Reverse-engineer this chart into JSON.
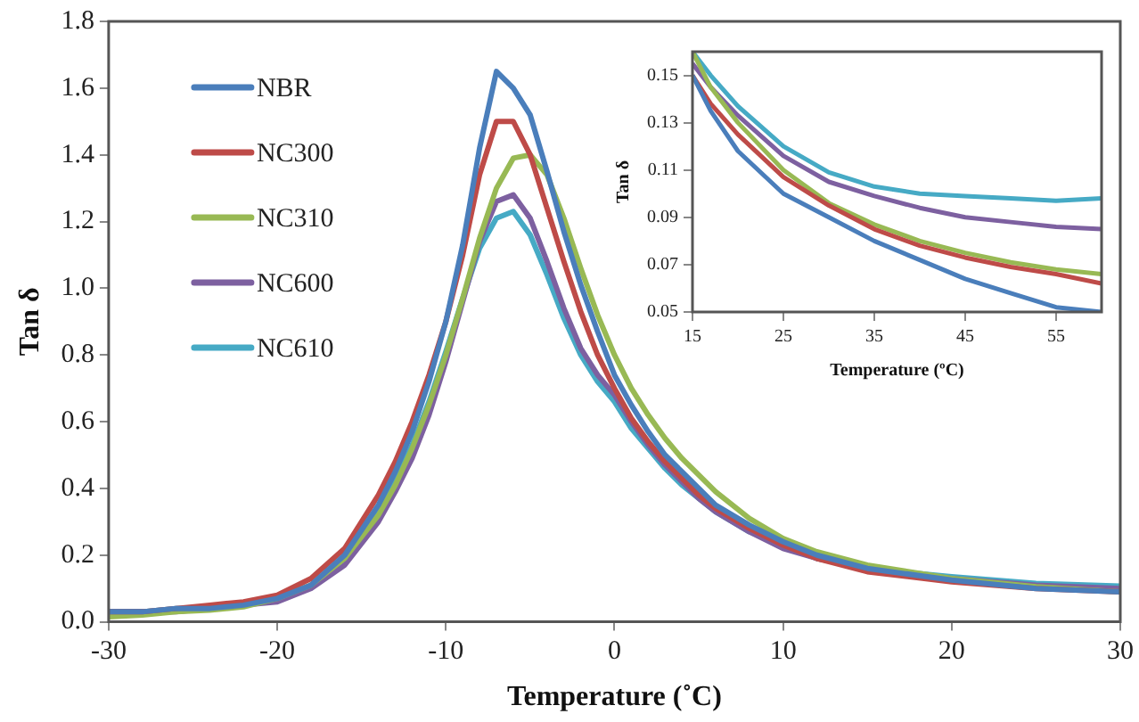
{
  "chart_data": [
    {
      "type": "line",
      "xlabel": "Temperature (˚C)",
      "ylabel": "Tan δ",
      "xlim": [
        -30,
        30
      ],
      "xticks": [
        -30,
        -20,
        -10,
        0,
        10,
        20,
        30
      ],
      "ylim": [
        0,
        1.8
      ],
      "yticks": [
        {
          "value": 0,
          "label": "0.0"
        },
        0.2,
        0.4,
        0.6,
        0.8,
        {
          "value": 1,
          "label": "1.0"
        },
        1.2,
        1.4,
        1.6,
        1.8
      ],
      "legend": "top left",
      "marker": "none",
      "line_style": "solid",
      "x": [
        -30,
        -28,
        -26,
        -24,
        -22,
        -20,
        -18,
        -16,
        -14,
        -13,
        -12,
        -11,
        -10,
        -9,
        -8,
        -7,
        -6,
        -5,
        -4,
        -3,
        -2,
        -1,
        0,
        1,
        2,
        3,
        4,
        5,
        6,
        8,
        10,
        12,
        15,
        20,
        25,
        30
      ],
      "series": [
        {
          "name": "NBR",
          "color": "#4a7ebb",
          "values": [
            0.03,
            0.03,
            0.04,
            0.04,
            0.05,
            0.07,
            0.11,
            0.2,
            0.35,
            0.45,
            0.57,
            0.72,
            0.9,
            1.13,
            1.42,
            1.65,
            1.6,
            1.52,
            1.35,
            1.17,
            1.01,
            0.87,
            0.74,
            0.65,
            0.57,
            0.5,
            0.45,
            0.4,
            0.35,
            0.29,
            0.24,
            0.2,
            0.16,
            0.125,
            0.1,
            0.09
          ]
        },
        {
          "name": "NC300",
          "color": "#be4b48",
          "values": [
            0.03,
            0.03,
            0.04,
            0.05,
            0.06,
            0.08,
            0.13,
            0.22,
            0.38,
            0.48,
            0.6,
            0.74,
            0.9,
            1.1,
            1.34,
            1.5,
            1.5,
            1.4,
            1.24,
            1.08,
            0.93,
            0.8,
            0.7,
            0.61,
            0.54,
            0.48,
            0.43,
            0.38,
            0.34,
            0.28,
            0.23,
            0.19,
            0.15,
            0.12,
            0.1,
            0.09
          ]
        },
        {
          "name": "NC310",
          "color": "#98b954",
          "values": [
            0.015,
            0.02,
            0.03,
            0.035,
            0.045,
            0.07,
            0.11,
            0.19,
            0.32,
            0.41,
            0.52,
            0.65,
            0.8,
            0.97,
            1.15,
            1.3,
            1.39,
            1.4,
            1.34,
            1.21,
            1.06,
            0.92,
            0.8,
            0.7,
            0.62,
            0.55,
            0.49,
            0.44,
            0.39,
            0.31,
            0.25,
            0.21,
            0.17,
            0.13,
            0.105,
            0.09
          ]
        },
        {
          "name": "NC600",
          "color": "#7d60a0",
          "values": [
            0.03,
            0.03,
            0.03,
            0.04,
            0.05,
            0.06,
            0.1,
            0.17,
            0.3,
            0.39,
            0.49,
            0.62,
            0.78,
            0.96,
            1.14,
            1.26,
            1.28,
            1.21,
            1.08,
            0.94,
            0.82,
            0.74,
            0.68,
            0.6,
            0.53,
            0.47,
            0.42,
            0.37,
            0.33,
            0.27,
            0.22,
            0.19,
            0.16,
            0.13,
            0.11,
            0.1
          ]
        },
        {
          "name": "NC610",
          "color": "#46aac5",
          "values": [
            0.03,
            0.03,
            0.04,
            0.04,
            0.05,
            0.07,
            0.11,
            0.19,
            0.33,
            0.42,
            0.53,
            0.66,
            0.81,
            0.97,
            1.12,
            1.21,
            1.23,
            1.16,
            1.04,
            0.91,
            0.8,
            0.72,
            0.66,
            0.58,
            0.52,
            0.46,
            0.41,
            0.37,
            0.33,
            0.27,
            0.23,
            0.19,
            0.16,
            0.135,
            0.115,
            0.107
          ]
        }
      ]
    },
    {
      "type": "line",
      "xlabel": "Temperature (ºC)",
      "ylabel": "Tan δ",
      "xlim": [
        15,
        60
      ],
      "xticks": [
        15,
        25,
        35,
        45,
        55
      ],
      "ylim": [
        0.05,
        0.16
      ],
      "yticks": [
        0.05,
        0.07,
        0.09,
        0.11,
        0.13,
        0.15
      ],
      "marker": "none",
      "line_style": "solid",
      "x": [
        15,
        17,
        20,
        25,
        30,
        35,
        40,
        45,
        50,
        55,
        60
      ],
      "series": [
        {
          "color": "#4a7ebb",
          "values": [
            0.15,
            0.135,
            0.118,
            0.1,
            0.09,
            0.08,
            0.072,
            0.064,
            0.058,
            0.052,
            0.05
          ]
        },
        {
          "color": "#be4b48",
          "values": [
            0.15,
            0.138,
            0.125,
            0.107,
            0.095,
            0.085,
            0.078,
            0.073,
            0.069,
            0.066,
            0.062
          ]
        },
        {
          "color": "#98b954",
          "values": [
            0.16,
            0.145,
            0.13,
            0.11,
            0.096,
            0.087,
            0.08,
            0.075,
            0.071,
            0.068,
            0.066
          ]
        },
        {
          "color": "#7d60a0",
          "values": [
            0.155,
            0.145,
            0.133,
            0.116,
            0.105,
            0.099,
            0.094,
            0.09,
            0.088,
            0.086,
            0.085
          ]
        },
        {
          "color": "#46aac5",
          "values": [
            0.16,
            0.15,
            0.137,
            0.12,
            0.109,
            0.103,
            0.1,
            0.099,
            0.098,
            0.097,
            0.098
          ]
        }
      ]
    }
  ]
}
